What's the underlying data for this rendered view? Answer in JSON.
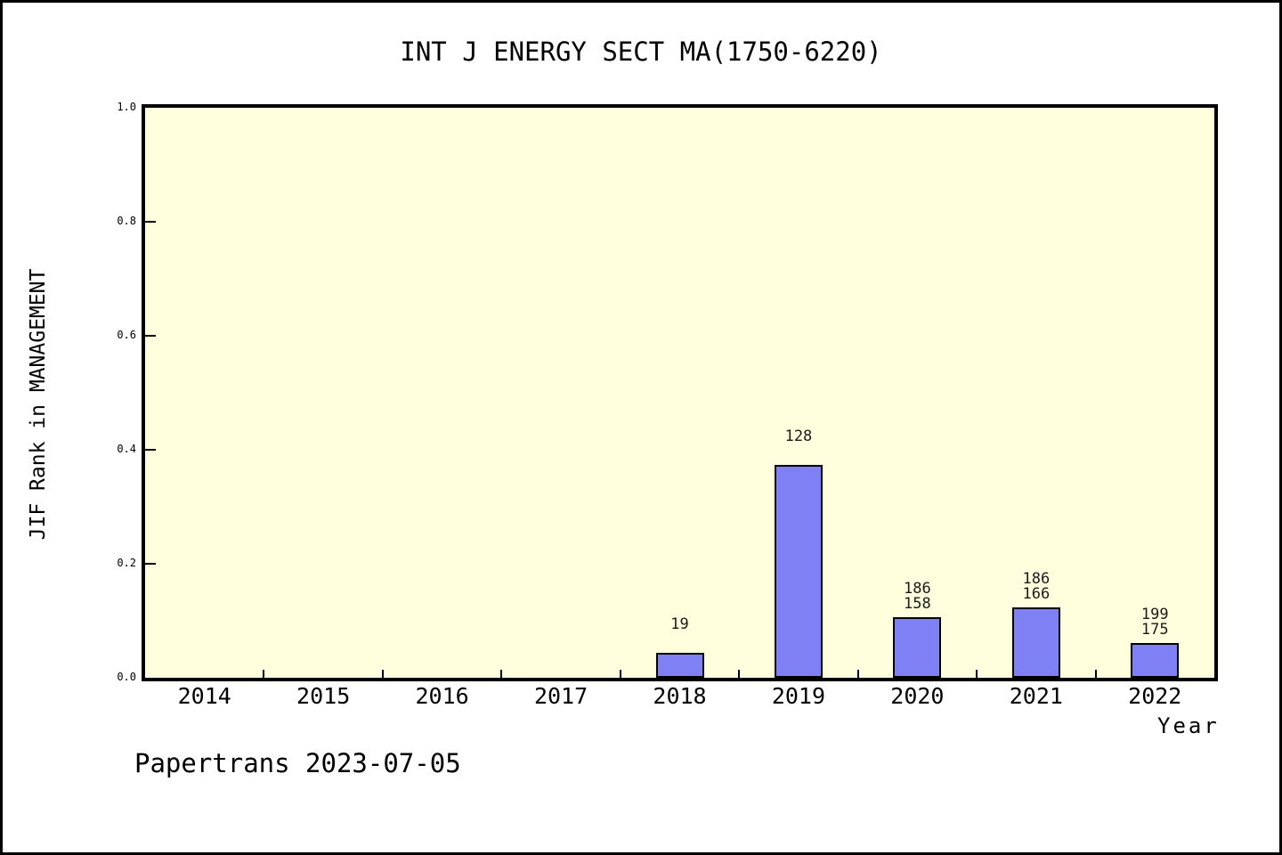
{
  "title": "INT J ENERGY SECT MA(1750-6220)",
  "footer": "Papertrans 2023-07-05",
  "chart_data": {
    "type": "bar",
    "title": "INT J ENERGY SECT MA(1750-6220)",
    "xlabel": "Year",
    "ylabel": "JIF Rank in MANAGEMENT",
    "ylim": [
      0.0,
      1.0
    ],
    "yticks": [
      "0.0",
      "0.2",
      "0.4",
      "0.6",
      "0.8",
      "1.0"
    ],
    "grid": false,
    "legend_position": "none",
    "plot_background": "#FFFFDD",
    "bar_color": "#8080F5",
    "bar_border_color": "#000000",
    "categories": [
      "2014",
      "2015",
      "2016",
      "2017",
      "2018",
      "2019",
      "2020",
      "2021",
      "2022"
    ],
    "series": [
      {
        "name": "JIF Rank in MANAGEMENT",
        "values": [
          null,
          null,
          null,
          null,
          0.044,
          0.373,
          0.106,
          0.123,
          0.061
        ]
      }
    ],
    "bars": [
      {
        "category": "2018",
        "value": 0.044,
        "labels": [
          "19"
        ]
      },
      {
        "category": "2019",
        "value": 0.373,
        "labels": [
          "128"
        ]
      },
      {
        "category": "2020",
        "value": 0.106,
        "labels": [
          "186",
          "158"
        ]
      },
      {
        "category": "2021",
        "value": 0.123,
        "labels": [
          "186",
          "166"
        ]
      },
      {
        "category": "2022",
        "value": 0.061,
        "labels": [
          "199",
          "175"
        ]
      }
    ]
  }
}
